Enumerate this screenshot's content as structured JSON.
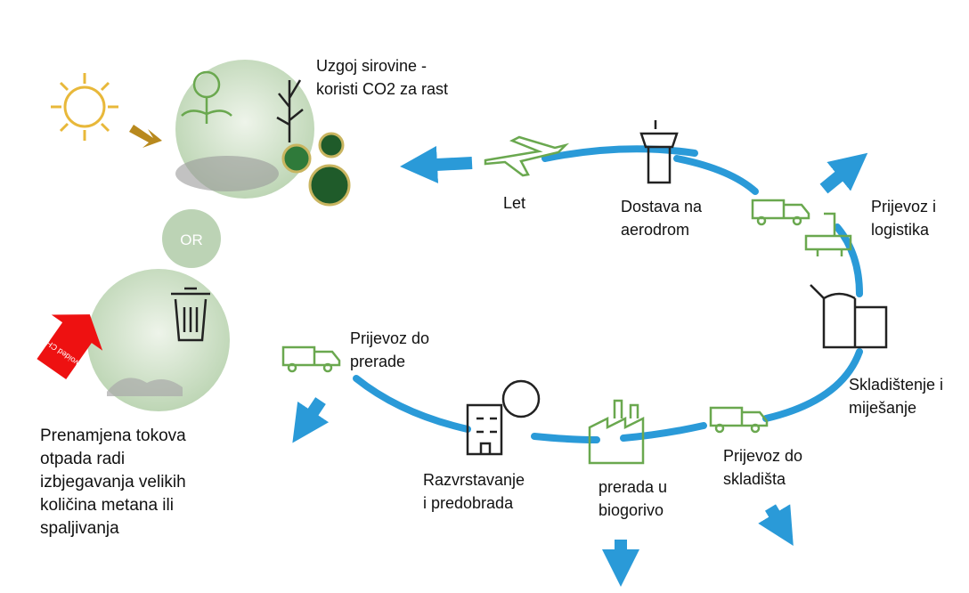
{
  "diagram": {
    "feedstock": {
      "lines": [
        "Uzgoj sirovine -",
        "koristi CO2 za rast"
      ]
    },
    "or_label": "OR",
    "avoided_label": "Avoided CH4",
    "waste": {
      "lines": [
        "Prenamjena tokova",
        "otpada radi",
        "izbjegavanja velikih",
        "količina metana ili",
        "spaljivanja"
      ]
    },
    "steps": [
      {
        "lines": [
          "Let"
        ]
      },
      {
        "lines": [
          "Dostava na",
          "aerodrom"
        ]
      },
      {
        "lines": [
          "Prijevoz i",
          "logistika"
        ]
      },
      {
        "lines": [
          "Skladištenje i",
          "miješanje"
        ]
      },
      {
        "lines": [
          "Prijevoz do",
          "skladišta"
        ]
      },
      {
        "lines": [
          "prerada u",
          "biogorivo"
        ]
      },
      {
        "lines": [
          "Razvrstavanje",
          "i predobrada"
        ]
      },
      {
        "lines": [
          "Prijevoz do",
          "prerade"
        ]
      }
    ]
  }
}
